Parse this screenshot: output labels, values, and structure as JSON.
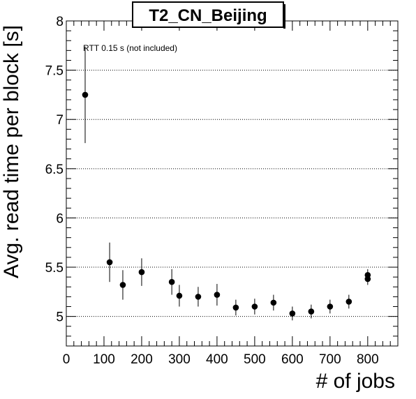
{
  "chart_data": {
    "type": "scatter",
    "title": "T2_CN_Beijing",
    "xlabel": "# of jobs",
    "ylabel": "Avg. read time per block [s]",
    "xlim": [
      0,
      880
    ],
    "ylim": [
      4.7,
      8.0
    ],
    "xticks": [
      0,
      100,
      200,
      300,
      400,
      500,
      600,
      700,
      800
    ],
    "yticks": [
      5,
      5.5,
      6,
      6.5,
      7,
      7.5,
      8
    ],
    "ytick_labels": [
      "5",
      "5.5",
      "6",
      "6.5",
      "7",
      "7.5",
      "8"
    ],
    "grid": "horizontal dotted at major y ticks",
    "annotation": "RTT 0.15 s (not included)",
    "series": [
      {
        "points": [
          {
            "x": 50,
            "y": 7.25,
            "err": 0.49
          },
          {
            "x": 115,
            "y": 5.55,
            "err": 0.2
          },
          {
            "x": 150,
            "y": 5.32,
            "err": 0.15
          },
          {
            "x": 200,
            "y": 5.45,
            "err": 0.14
          },
          {
            "x": 280,
            "y": 5.35,
            "err": 0.13
          },
          {
            "x": 300,
            "y": 5.21,
            "err": 0.11
          },
          {
            "x": 350,
            "y": 5.2,
            "err": 0.1
          },
          {
            "x": 400,
            "y": 5.22,
            "err": 0.11
          },
          {
            "x": 450,
            "y": 5.09,
            "err": 0.08
          },
          {
            "x": 500,
            "y": 5.1,
            "err": 0.08
          },
          {
            "x": 550,
            "y": 5.14,
            "err": 0.08
          },
          {
            "x": 600,
            "y": 5.03,
            "err": 0.07
          },
          {
            "x": 650,
            "y": 5.05,
            "err": 0.07
          },
          {
            "x": 700,
            "y": 5.1,
            "err": 0.07
          },
          {
            "x": 750,
            "y": 5.15,
            "err": 0.07
          },
          {
            "x": 800,
            "y": 5.42,
            "err": 0.06
          },
          {
            "x": 800,
            "y": 5.38,
            "err": 0.06
          }
        ]
      }
    ]
  }
}
